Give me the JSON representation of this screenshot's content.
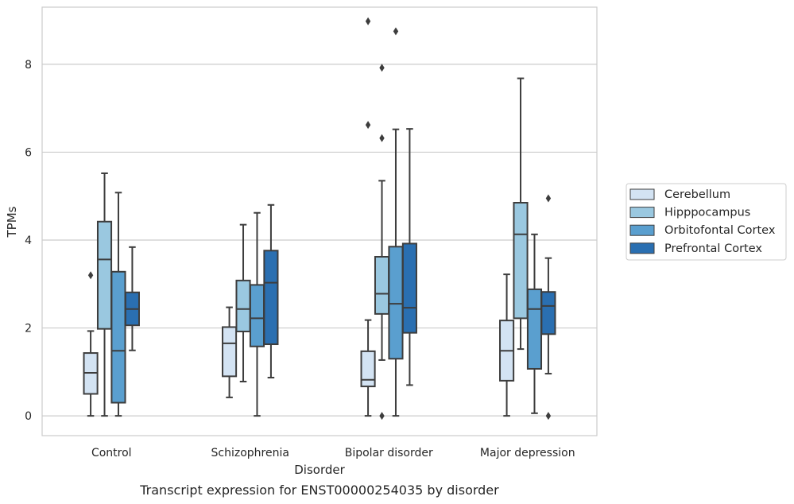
{
  "chart_data": {
    "type": "box",
    "xlabel": "Disorder",
    "ylabel": "TPMs",
    "caption": "Transcript expression for ENST00000254035 by disorder",
    "ylim": [
      -0.45,
      9.3
    ],
    "yticks": [
      0,
      2,
      4,
      6,
      8
    ],
    "grid": "horizontal",
    "legend_position": "right",
    "categories": [
      "Control",
      "Schizophrenia",
      "Bipolar disorder",
      "Major depression"
    ],
    "series": [
      {
        "name": "Cerebellum",
        "color": "#d3e3f3",
        "boxes": [
          {
            "whisker_low": 0.0,
            "q1": 0.5,
            "median": 0.98,
            "q3": 1.43,
            "whisker_high": 1.93,
            "outliers": [
              3.2
            ]
          },
          {
            "whisker_low": 0.42,
            "q1": 0.9,
            "median": 1.65,
            "q3": 2.02,
            "whisker_high": 2.47,
            "outliers": []
          },
          {
            "whisker_low": 0.0,
            "q1": 0.67,
            "median": 0.82,
            "q3": 1.47,
            "whisker_high": 2.18,
            "outliers": [
              6.62,
              8.98
            ]
          },
          {
            "whisker_low": 0.0,
            "q1": 0.8,
            "median": 1.48,
            "q3": 2.17,
            "whisker_high": 3.22,
            "outliers": []
          }
        ]
      },
      {
        "name": "Hipppocampus",
        "color": "#9ac8e0",
        "boxes": [
          {
            "whisker_low": 0.0,
            "q1": 1.98,
            "median": 3.56,
            "q3": 4.42,
            "whisker_high": 5.52,
            "outliers": []
          },
          {
            "whisker_low": 0.78,
            "q1": 1.92,
            "median": 2.43,
            "q3": 3.08,
            "whisker_high": 4.35,
            "outliers": []
          },
          {
            "whisker_low": 1.27,
            "q1": 2.32,
            "median": 2.78,
            "q3": 3.62,
            "whisker_high": 5.35,
            "outliers": [
              0.0,
              6.32,
              7.92
            ]
          },
          {
            "whisker_low": 1.52,
            "q1": 2.22,
            "median": 4.13,
            "q3": 4.85,
            "whisker_high": 7.68,
            "outliers": []
          }
        ]
      },
      {
        "name": "Orbitofontal Cortex",
        "color": "#5a9fcf",
        "boxes": [
          {
            "whisker_low": 0.0,
            "q1": 0.3,
            "median": 1.48,
            "q3": 3.28,
            "whisker_high": 5.08,
            "outliers": []
          },
          {
            "whisker_low": 0.0,
            "q1": 1.58,
            "median": 2.22,
            "q3": 2.98,
            "whisker_high": 4.62,
            "outliers": []
          },
          {
            "whisker_low": 0.0,
            "q1": 1.3,
            "median": 2.55,
            "q3": 3.85,
            "whisker_high": 6.52,
            "outliers": [
              8.75
            ]
          },
          {
            "whisker_low": 0.06,
            "q1": 1.07,
            "median": 2.43,
            "q3": 2.88,
            "whisker_high": 4.13,
            "outliers": []
          }
        ]
      },
      {
        "name": "Prefrontal Cortex",
        "color": "#2a6fb1",
        "boxes": [
          {
            "whisker_low": 1.49,
            "q1": 2.06,
            "median": 2.43,
            "q3": 2.81,
            "whisker_high": 3.84,
            "outliers": []
          },
          {
            "whisker_low": 0.87,
            "q1": 1.63,
            "median": 3.03,
            "q3": 3.76,
            "whisker_high": 4.8,
            "outliers": []
          },
          {
            "whisker_low": 0.7,
            "q1": 1.89,
            "median": 2.46,
            "q3": 3.92,
            "whisker_high": 6.53,
            "outliers": []
          },
          {
            "whisker_low": 0.96,
            "q1": 1.86,
            "median": 2.5,
            "q3": 2.82,
            "whisker_high": 3.59,
            "outliers": [
              0.0,
              4.95
            ]
          }
        ]
      }
    ]
  }
}
